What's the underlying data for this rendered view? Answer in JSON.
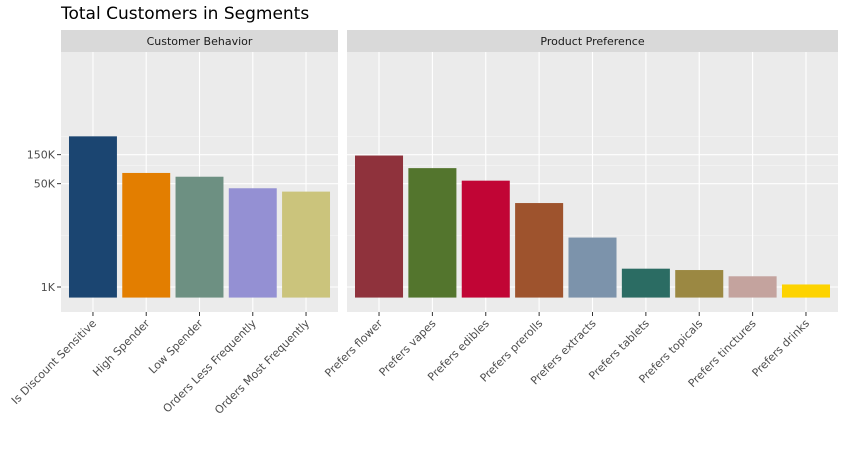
{
  "chart_data": {
    "type": "bar",
    "title": "Total Customers in Segments",
    "xlabel": "",
    "ylabel": "",
    "y_scale": "log",
    "y_ticks": [
      {
        "value": 1000,
        "label": "1K"
      },
      {
        "value": 50000,
        "label": "50K"
      },
      {
        "value": 150000,
        "label": "150K"
      }
    ],
    "grid": true,
    "legend": "none",
    "facets": [
      {
        "label": "Customer Behavior",
        "categories": [
          "Is Discount Sensitive",
          "High Spender",
          "Low Spender",
          "Orders Less Frequently",
          "Orders Most Frequently"
        ],
        "values": [
          300000,
          75000,
          65000,
          42000,
          37000
        ],
        "colors": [
          "#1b4571",
          "#e37e00",
          "#6d9082",
          "#9490d3",
          "#cbc47c"
        ]
      },
      {
        "label": "Product Preference",
        "categories": [
          "Prefers flower",
          "Prefers vapes",
          "Prefers edibles",
          "Prefers prerolls",
          "Prefers extracts",
          "Prefers tablets",
          "Prefers topicals",
          "Prefers tinctures",
          "Prefers drinks"
        ],
        "values": [
          145000,
          90000,
          56000,
          24000,
          6500,
          2000,
          1900,
          1500,
          1100
        ],
        "colors": [
          "#8f323c",
          "#53752d",
          "#c10535",
          "#9e532d",
          "#7c93ab",
          "#2b6c63",
          "#9b8842",
          "#c4a39e",
          "#fdd300"
        ]
      }
    ]
  }
}
